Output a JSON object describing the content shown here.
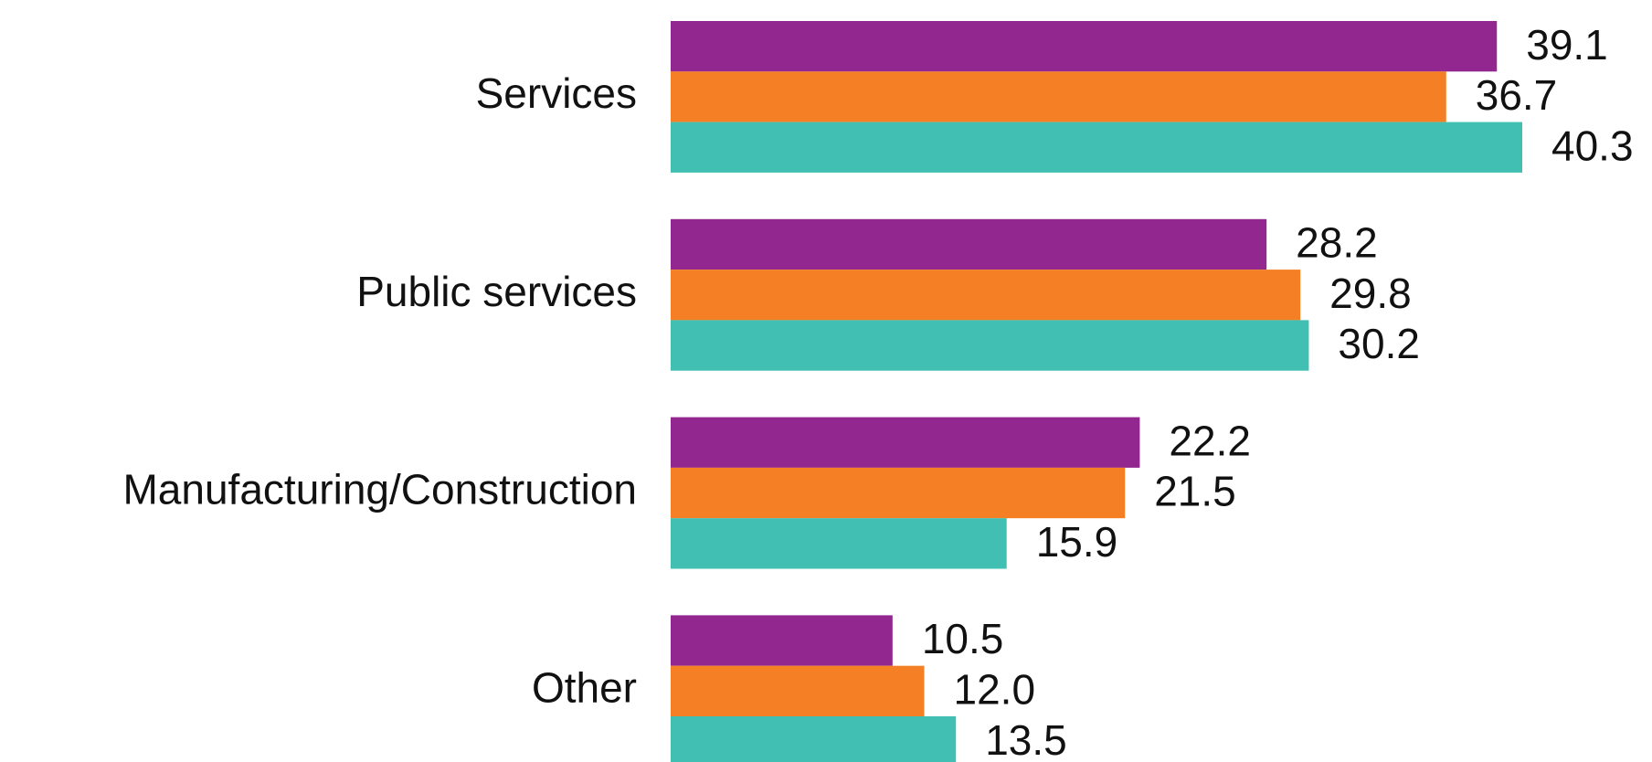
{
  "chart_data": {
    "type": "hbar",
    "categories": [
      "Services",
      "Public services",
      "Manufacturing/Construction",
      "Other"
    ],
    "series": [
      {
        "color": "#92278f",
        "values": [
          39.1,
          28.2,
          22.2,
          10.5
        ]
      },
      {
        "color": "#f47f24",
        "values": [
          36.7,
          29.8,
          21.5,
          12.0
        ],
        "value_labels": [
          "36.7",
          "29.8",
          "21.5",
          "12.0"
        ]
      },
      {
        "color": "#41bfb3",
        "values": [
          40.3,
          30.2,
          15.9,
          13.5
        ]
      }
    ]
  }
}
